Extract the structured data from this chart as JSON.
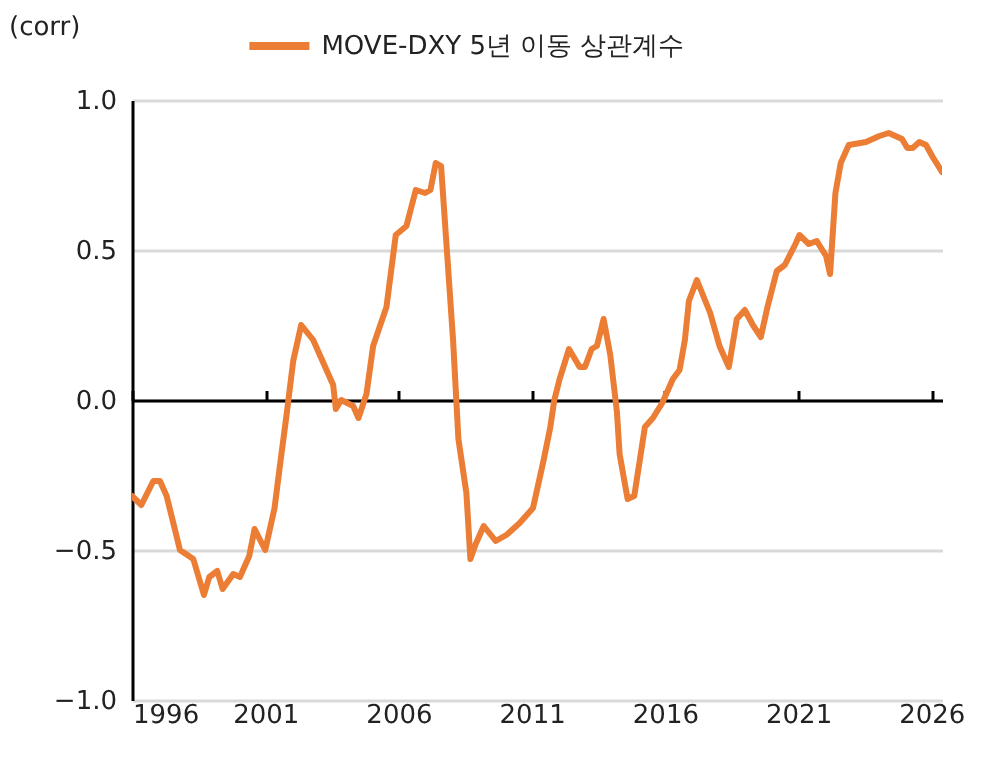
{
  "chart_data": {
    "type": "line",
    "ylabel": "(corr)",
    "legend": "top",
    "grid": "y",
    "xlim": [
      1996,
      2026.4
    ],
    "xticks": [
      1996,
      2001,
      2006,
      2011,
      2016,
      2021,
      2026
    ],
    "ylim": [
      -1,
      1
    ],
    "yticks": [
      {
        "value": 1,
        "label": "1.0"
      },
      {
        "value": 0.5,
        "label": "0.5"
      },
      {
        "value": 0,
        "label": "0.0"
      },
      {
        "value": -0.5,
        "label": "−0.5"
      },
      {
        "value": -1,
        "label": "−1.0"
      }
    ],
    "series": [
      {
        "name": "MOVE-DXY 5년 이동 상관계수",
        "color": "#eb7d35",
        "x": [
          1996.0,
          1996.35,
          1996.8,
          1997.05,
          1997.3,
          1997.8,
          1998.3,
          1998.7,
          1998.9,
          1999.2,
          1999.4,
          1999.8,
          2000.05,
          2000.4,
          2000.6,
          2001.0,
          2001.35,
          2001.55,
          2001.8,
          2002.05,
          2002.35,
          2002.8,
          2003.3,
          2003.55,
          2003.65,
          2003.85,
          2004.3,
          2004.5,
          2004.8,
          2005.05,
          2005.55,
          2005.9,
          2006.3,
          2006.65,
          2007.0,
          2007.2,
          2007.4,
          2007.6,
          2008.05,
          2008.25,
          2008.55,
          2008.7,
          2008.9,
          2009.2,
          2009.65,
          2010.05,
          2010.55,
          2011.05,
          2011.45,
          2011.7,
          2011.85,
          2012.05,
          2012.4,
          2012.8,
          2013.0,
          2013.25,
          2013.45,
          2013.7,
          2013.95,
          2014.2,
          2014.3,
          2014.6,
          2014.85,
          2015.25,
          2015.55,
          2015.9,
          2016.3,
          2016.55,
          2016.75,
          2016.9,
          2017.2,
          2017.7,
          2018.05,
          2018.4,
          2018.7,
          2019.0,
          2019.3,
          2019.6,
          2019.85,
          2020.2,
          2020.5,
          2020.9,
          2021.05,
          2021.4,
          2021.7,
          2022.05,
          2022.2,
          2022.4,
          2022.6,
          2022.9,
          2023.55,
          2024.05,
          2024.4,
          2024.9,
          2025.1,
          2025.3,
          2025.55,
          2025.8,
          2026.05,
          2026.4
        ],
        "values": [
          -0.32,
          -0.35,
          -0.27,
          -0.27,
          -0.32,
          -0.5,
          -0.53,
          -0.65,
          -0.59,
          -0.57,
          -0.63,
          -0.58,
          -0.59,
          -0.52,
          -0.43,
          -0.5,
          -0.36,
          -0.22,
          -0.05,
          0.13,
          0.25,
          0.2,
          0.1,
          0.05,
          -0.03,
          0.0,
          -0.02,
          -0.06,
          0.02,
          0.18,
          0.31,
          0.55,
          0.58,
          0.7,
          0.69,
          0.7,
          0.79,
          0.78,
          0.2,
          -0.13,
          -0.31,
          -0.53,
          -0.48,
          -0.42,
          -0.47,
          -0.45,
          -0.41,
          -0.36,
          -0.2,
          -0.09,
          0.0,
          0.07,
          0.17,
          0.11,
          0.11,
          0.17,
          0.18,
          0.27,
          0.15,
          -0.04,
          -0.18,
          -0.33,
          -0.32,
          -0.09,
          -0.06,
          -0.01,
          0.07,
          0.1,
          0.2,
          0.33,
          0.4,
          0.29,
          0.18,
          0.11,
          0.27,
          0.3,
          0.25,
          0.21,
          0.31,
          0.43,
          0.45,
          0.52,
          0.55,
          0.52,
          0.53,
          0.48,
          0.42,
          0.69,
          0.79,
          0.85,
          0.86,
          0.88,
          0.89,
          0.87,
          0.84,
          0.84,
          0.86,
          0.85,
          0.81,
          0.76
        ]
      }
    ]
  }
}
